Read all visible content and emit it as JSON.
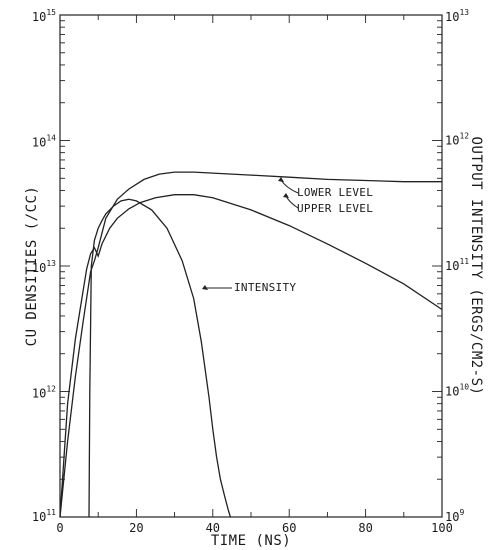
{
  "chart_data": {
    "type": "line",
    "xlabel": "TIME (NS)",
    "ylabel": "CU DENSITIES (/CC)",
    "y2label": "OUTPUT INTENSITY (ERGS/CM2-S)",
    "xlim": [
      0,
      100
    ],
    "ylim": [
      100000000000.0,
      1000000000000000.0
    ],
    "y2lim": [
      1000000000.0,
      10000000000000.0
    ],
    "yscale": "log",
    "y2scale": "log",
    "grid": false,
    "x_ticks": [
      {
        "value": 0,
        "label": "0"
      },
      {
        "value": 20,
        "label": "20"
      },
      {
        "value": 40,
        "label": "40"
      },
      {
        "value": 60,
        "label": "60"
      },
      {
        "value": 80,
        "label": "80"
      },
      {
        "value": 100,
        "label": "100"
      }
    ],
    "y_ticks": [
      {
        "value": 100000000000.0,
        "base": "10",
        "exp": "11"
      },
      {
        "value": 1000000000000.0,
        "base": "10",
        "exp": "12"
      },
      {
        "value": 10000000000000.0,
        "base": "10",
        "exp": "13"
      },
      {
        "value": 100000000000000.0,
        "base": "10",
        "exp": "14"
      },
      {
        "value": 1000000000000000.0,
        "base": "10",
        "exp": "15"
      }
    ],
    "y2_ticks": [
      {
        "value": 1000000000.0,
        "base": "10",
        "exp": "9"
      },
      {
        "value": 10000000000.0,
        "base": "10",
        "exp": "10"
      },
      {
        "value": 100000000000.0,
        "base": "10",
        "exp": "11"
      },
      {
        "value": 1000000000000.0,
        "base": "10",
        "exp": "12"
      },
      {
        "value": 10000000000000.0,
        "base": "10",
        "exp": "13"
      }
    ],
    "series": [
      {
        "name": "LOWER LEVEL",
        "axis": "left",
        "x": [
          0,
          2,
          4,
          6,
          8,
          9,
          10,
          12,
          15,
          18,
          22,
          26,
          30,
          35,
          40,
          50,
          60,
          70,
          80,
          90,
          100
        ],
        "y": [
          100000000000.0,
          400000000000.0,
          1300000000000.0,
          3500000000000.0,
          9000000000000.0,
          11000000000000.0,
          14000000000000.0,
          24000000000000.0,
          34000000000000.0,
          41000000000000.0,
          49000000000000.0,
          54000000000000.0,
          56000000000000.0,
          56000000000000.0,
          55000000000000.0,
          53000000000000.0,
          51000000000000.0,
          49000000000000.0,
          48000000000000.0,
          47000000000000.0,
          47000000000000.0
        ]
      },
      {
        "name": "UPPER LEVEL",
        "axis": "left",
        "x": [
          0,
          2,
          4,
          6,
          7,
          8,
          9,
          10,
          11,
          13,
          15,
          18,
          21,
          25,
          30,
          35,
          40,
          50,
          60,
          70,
          80,
          90,
          100
        ],
        "y": [
          100000000000.0,
          800000000000.0,
          2600000000000.0,
          6200000000000.0,
          9500000000000.0,
          12500000000000.0,
          14000000000000.0,
          12000000000000.0,
          15000000000000.0,
          20000000000000.0,
          24000000000000.0,
          28500000000000.0,
          32000000000000.0,
          35000000000000.0,
          37000000000000.0,
          37000000000000.0,
          35000000000000.0,
          28000000000000.0,
          21000000000000.0,
          15000000000000.0,
          10500000000000.0,
          7200000000000.0,
          4500000000000.0
        ]
      },
      {
        "name": "INTENSITY",
        "axis": "right",
        "x": [
          7.6,
          7.8,
          8.2,
          9,
          10,
          11,
          12,
          14,
          16,
          18,
          20,
          24,
          28,
          32,
          35,
          37,
          39,
          40,
          41,
          42,
          43,
          44,
          44.6
        ],
        "y": [
          1000000000.0,
          10000000000.0,
          100000000000.0,
          160000000000.0,
          200000000000.0,
          230000000000.0,
          260000000000.0,
          300000000000.0,
          330000000000.0,
          340000000000.0,
          330000000000.0,
          280000000000.0,
          200000000000.0,
          110000000000.0,
          55000000000.0,
          25000000000.0,
          9000000000.0,
          5000000000.0,
          3000000000.0,
          2000000000.0,
          1500000000.0,
          1150000000.0,
          1000000000.0
        ]
      }
    ],
    "annotations": [
      {
        "id": "lower",
        "label": "LOWER LEVEL"
      },
      {
        "id": "upper",
        "label": "UPPER LEVEL"
      },
      {
        "id": "intensity",
        "label": "INTENSITY"
      }
    ]
  }
}
